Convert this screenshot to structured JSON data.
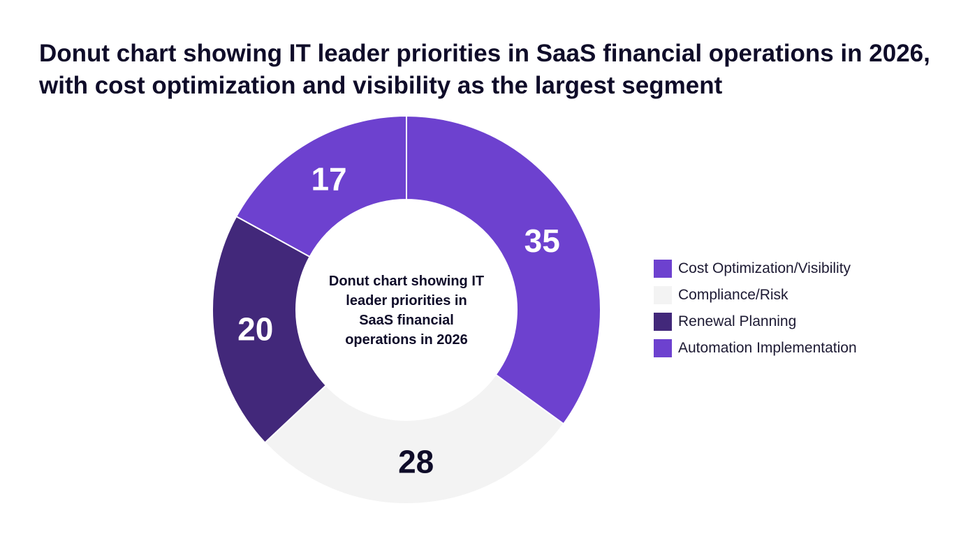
{
  "chart_data": {
    "type": "pie",
    "title": "Donut chart showing IT leader priorities in SaaS financial operations in 2026, with cost optimization and visibility as the largest segment",
    "center_label": "Donut chart showing IT leader priorities in SaaS financial operations in 2026",
    "categories": [
      "Cost Optimization/Visibility",
      "Compliance/Risk",
      "Renewal Planning",
      "Automation Implementation"
    ],
    "values": [
      35,
      28,
      20,
      17
    ],
    "colors": [
      "#6d41cf",
      "#f3f3f3",
      "#42287a",
      "#6d41cf"
    ],
    "label_colors": [
      "#ffffff",
      "#0f0c29",
      "#ffffff",
      "#ffffff"
    ],
    "legend_position": "right",
    "donut": true
  }
}
